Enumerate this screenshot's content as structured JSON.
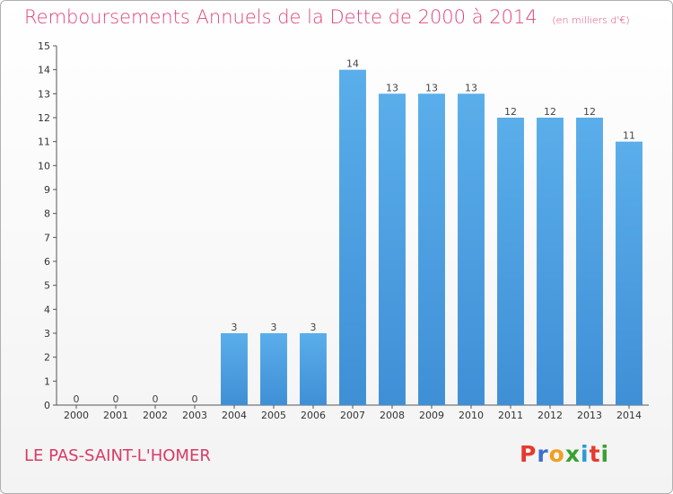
{
  "chart_data": {
    "type": "bar",
    "title": "Remboursements Annuels de la Dette de 2000 à 2014",
    "subtitle": "(en milliers d'€)",
    "categories": [
      "2000",
      "2001",
      "2002",
      "2003",
      "2004",
      "2005",
      "2006",
      "2007",
      "2008",
      "2009",
      "2010",
      "2011",
      "2012",
      "2013",
      "2014"
    ],
    "values": [
      0,
      0,
      0,
      0,
      3,
      3,
      3,
      14,
      13,
      13,
      13,
      12,
      12,
      12,
      11
    ],
    "yticks": [
      0,
      1,
      2,
      3,
      4,
      5,
      6,
      7,
      8,
      9,
      10,
      11,
      12,
      13,
      14,
      15
    ],
    "ylim": [
      0,
      15
    ],
    "xlabel": "",
    "ylabel": "",
    "grid": false,
    "bar_color": "#3f8fd6",
    "bar_color_light": "#5aaeea"
  },
  "footer": {
    "place": "LE PAS-SAINT-L'HOMER",
    "logo_letters": [
      "P",
      "r",
      "o",
      "x",
      "i",
      "t",
      "i"
    ],
    "logo_colors": [
      "#e63a2e",
      "#3d6fcf",
      "#f0a020",
      "#3aa030",
      "#2a9ad8",
      "#e63a2e",
      "#3aa030"
    ]
  }
}
